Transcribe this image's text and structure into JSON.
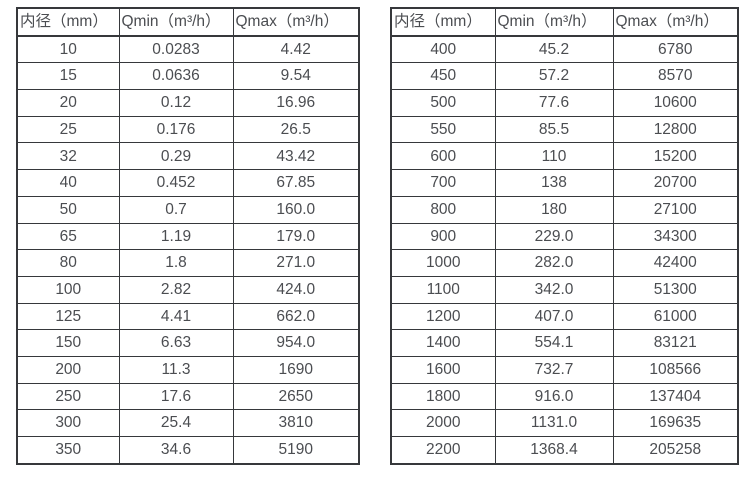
{
  "page": {
    "background": "#ffffff",
    "border_color": "#36383b",
    "text_color": "#4b4d51"
  },
  "tables": [
    {
      "name": "flow-range-table-small-diameters",
      "headers": [
        "内径（mm）",
        "Qmin（m³/h）",
        "Qmax（m³/h）"
      ],
      "rows": [
        [
          "10",
          "0.0283",
          "4.42"
        ],
        [
          "15",
          "0.0636",
          "9.54"
        ],
        [
          "20",
          "0.12",
          "16.96"
        ],
        [
          "25",
          "0.176",
          "26.5"
        ],
        [
          "32",
          "0.29",
          "43.42"
        ],
        [
          "40",
          "0.452",
          "67.85"
        ],
        [
          "50",
          "0.7",
          "160.0"
        ],
        [
          "65",
          "1.19",
          "179.0"
        ],
        [
          "80",
          "1.8",
          "271.0"
        ],
        [
          "100",
          "2.82",
          "424.0"
        ],
        [
          "125",
          "4.41",
          "662.0"
        ],
        [
          "150",
          "6.63",
          "954.0"
        ],
        [
          "200",
          "11.3",
          "1690"
        ],
        [
          "250",
          "17.6",
          "2650"
        ],
        [
          "300",
          "25.4",
          "3810"
        ],
        [
          "350",
          "34.6",
          "5190"
        ]
      ]
    },
    {
      "name": "flow-range-table-large-diameters",
      "headers": [
        "内径（mm）",
        "Qmin（m³/h）",
        "Qmax（m³/h）"
      ],
      "rows": [
        [
          "400",
          "45.2",
          "6780"
        ],
        [
          "450",
          "57.2",
          "8570"
        ],
        [
          "500",
          "77.6",
          "10600"
        ],
        [
          "550",
          "85.5",
          "12800"
        ],
        [
          "600",
          "110",
          "15200"
        ],
        [
          "700",
          "138",
          "20700"
        ],
        [
          "800",
          "180",
          "27100"
        ],
        [
          "900",
          "229.0",
          "34300"
        ],
        [
          "1000",
          "282.0",
          "42400"
        ],
        [
          "1100",
          "342.0",
          "51300"
        ],
        [
          "1200",
          "407.0",
          "61000"
        ],
        [
          "1400",
          "554.1",
          "83121"
        ],
        [
          "1600",
          "732.7",
          "108566"
        ],
        [
          "1800",
          "916.0",
          "137404"
        ],
        [
          "2000",
          "1131.0",
          "169635"
        ],
        [
          "2200",
          "1368.4",
          "205258"
        ]
      ]
    }
  ]
}
